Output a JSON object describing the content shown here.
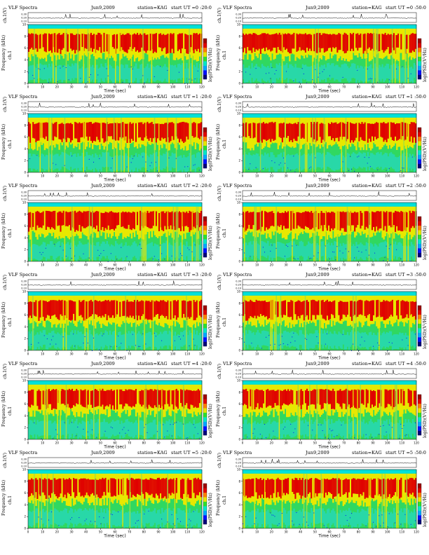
{
  "page": {
    "panels": [
      {
        "title": "VLF Spectra",
        "date": "Jun9,2009",
        "station": "station=KAG",
        "start": "start UT =0 :20:0"
      },
      {
        "title": "VLF Spectra",
        "date": "Jun9,2009",
        "station": "station=KAG",
        "start": "start UT =0 :50:0"
      },
      {
        "title": "VLF Spectra",
        "date": "Jun9,2009",
        "station": "station=KAG",
        "start": "start UT =1 :20:0"
      },
      {
        "title": "VLF Spectra",
        "date": "Jun9,2009",
        "station": "station=KAG",
        "start": "start UT =1 :50:0"
      },
      {
        "title": "VLF Spectra",
        "date": "Jun9,2009",
        "station": "station=KAG",
        "start": "start UT =2 :20:0"
      },
      {
        "title": "VLF Spectra",
        "date": "Jun9,2009",
        "station": "station=KAG",
        "start": "start UT =2 :50:0"
      },
      {
        "title": "VLF Spectra",
        "date": "Jun9,2009",
        "station": "station=KAG",
        "start": "start UT =3 :20:0"
      },
      {
        "title": "VLF Spectra",
        "date": "Jun9,2009",
        "station": "station=KAG",
        "start": "start UT =3 :50:0"
      },
      {
        "title": "VLF Spectra",
        "date": "Jun9,2009",
        "station": "station=KAG",
        "start": "start UT =4 :20:0"
      },
      {
        "title": "VLF Spectra",
        "date": "Jun9,2009",
        "station": "station=KAG",
        "start": "start UT =4 :50:0"
      },
      {
        "title": "VLF Spectra",
        "date": "Jun9,2009",
        "station": "station=KAG",
        "start": "start UT =5 :20:0"
      },
      {
        "title": "VLF Spectra",
        "date": "Jun9,2009",
        "station": "station=KAG",
        "start": "start UT =5 :50:0"
      }
    ]
  },
  "chart_data": {
    "type": "heatmap",
    "panel_count": 12,
    "layout": "6 rows x 2 columns",
    "xlabel": "Time (sec)",
    "xlim": [
      0,
      120
    ],
    "xticks": [
      "0",
      "10",
      "20",
      "30",
      "40",
      "50",
      "60",
      "70",
      "80",
      "90",
      "100",
      "110",
      "120"
    ],
    "top_strip": {
      "ylabel": "ch.1(V)",
      "yticks": [
        "0.30",
        "0.20",
        "0.10"
      ]
    },
    "spectrogram": {
      "ylabel": "Frequency (kHz)",
      "side_label": "ch.1",
      "ylim": [
        0,
        10
      ],
      "yticks": [
        "0",
        "2",
        "4",
        "6",
        "8",
        "10"
      ]
    },
    "colorbar": {
      "label": "log(PSD)(V²/Hz)",
      "colors": [
        "#00007a",
        "#0010ff",
        "#00a8ff",
        "#00e8c8",
        "#30e030",
        "#e8e800",
        "#ff8000",
        "#e00000",
        "#a00000"
      ],
      "range": [
        -7,
        -3
      ]
    },
    "band_colors": {
      "top_cyan": "#00e0d8",
      "yellow": "#e8e800",
      "red": "#e00000",
      "green": "#30d860",
      "cyan": "#28d8a8"
    }
  }
}
